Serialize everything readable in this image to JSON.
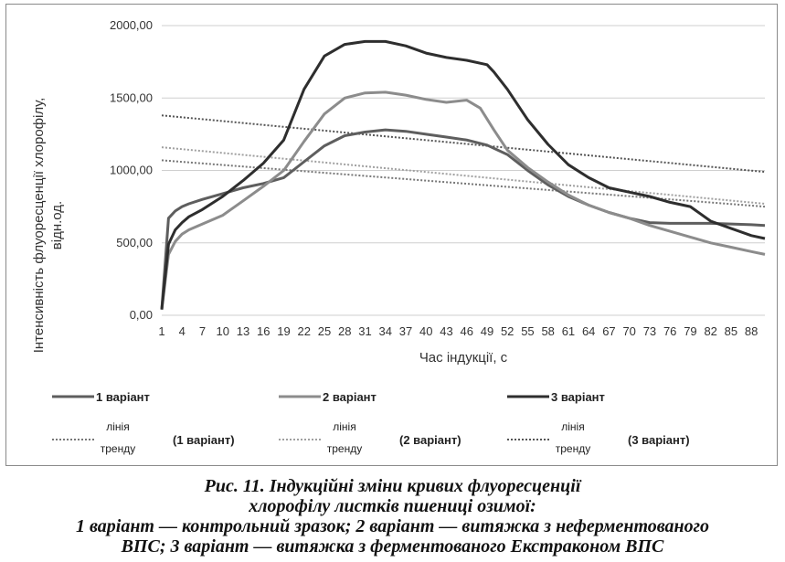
{
  "chart_data": {
    "type": "line",
    "ylabel": "Інтенсивність флуоресценції хлорофілу, відн.од.",
    "xlabel": "Час індукції, с",
    "ylim": [
      0,
      2000
    ],
    "y_ticks": [
      "0,00",
      "500,00",
      "1000,00",
      "1500,00",
      "2000,00"
    ],
    "x_ticks": [
      "1",
      "4",
      "7",
      "10",
      "13",
      "16",
      "19",
      "22",
      "25",
      "28",
      "31",
      "34",
      "37",
      "40",
      "43",
      "46",
      "49",
      "52",
      "55",
      "58",
      "61",
      "64",
      "67",
      "70",
      "73",
      "76",
      "79",
      "82",
      "85",
      "88"
    ],
    "grid": "horizontal",
    "series": [
      {
        "name": "1 варіант",
        "color": "#5e5e5e",
        "x": [
          1,
          2,
          3,
          4,
          5,
          7,
          10,
          13,
          16,
          19,
          22,
          25,
          28,
          31,
          34,
          37,
          40,
          43,
          46,
          49,
          52,
          55,
          58,
          61,
          64,
          67,
          70,
          73,
          76,
          79,
          82,
          85,
          88,
          90
        ],
        "y": [
          40,
          670,
          720,
          750,
          770,
          800,
          840,
          880,
          910,
          950,
          1060,
          1170,
          1240,
          1265,
          1280,
          1270,
          1250,
          1230,
          1210,
          1175,
          1110,
          1000,
          900,
          820,
          760,
          710,
          670,
          640,
          635,
          635,
          635,
          630,
          625,
          620
        ]
      },
      {
        "name": "2 варіант",
        "color": "#8c8c8c",
        "x": [
          1,
          2,
          3,
          4,
          5,
          7,
          10,
          13,
          16,
          19,
          22,
          25,
          28,
          31,
          34,
          37,
          40,
          43,
          46,
          48,
          50,
          52,
          55,
          58,
          61,
          64,
          67,
          70,
          73,
          76,
          79,
          82,
          85,
          88,
          90
        ],
        "y": [
          40,
          420,
          510,
          560,
          590,
          630,
          690,
          790,
          890,
          1000,
          1200,
          1390,
          1500,
          1535,
          1540,
          1520,
          1490,
          1470,
          1485,
          1430,
          1280,
          1140,
          1020,
          920,
          830,
          760,
          710,
          670,
          620,
          580,
          540,
          500,
          470,
          440,
          420
        ]
      },
      {
        "name": "3 варіант",
        "color": "#2e2e2e",
        "x": [
          1,
          2,
          3,
          4,
          5,
          7,
          10,
          13,
          16,
          19,
          22,
          25,
          28,
          31,
          34,
          37,
          40,
          43,
          46,
          49,
          50,
          52,
          55,
          58,
          61,
          64,
          67,
          70,
          73,
          76,
          79,
          82,
          85,
          88,
          90
        ],
        "y": [
          40,
          490,
          590,
          640,
          680,
          730,
          820,
          930,
          1050,
          1210,
          1560,
          1790,
          1870,
          1890,
          1890,
          1860,
          1810,
          1780,
          1760,
          1730,
          1680,
          1560,
          1350,
          1180,
          1040,
          950,
          880,
          850,
          820,
          780,
          750,
          650,
          600,
          550,
          530
        ]
      }
    ],
    "trendlines": [
      {
        "series": "1 варіант",
        "start": 1070,
        "end": 750,
        "color": "#777777"
      },
      {
        "series": "2 варіант",
        "start": 1160,
        "end": 770,
        "color": "#a0a0a0"
      },
      {
        "series": "3 варіант",
        "start": 1380,
        "end": 990,
        "color": "#555555"
      }
    ],
    "legend": {
      "position": "bottom",
      "trend_label_line1": "лінія",
      "trend_label_line2": "тренду",
      "trend_names": [
        "(1 варіант)",
        "(2 варіант)",
        "(3 варіант)"
      ]
    }
  },
  "caption": {
    "line1": "Рис. 11. Індукційні зміни кривих флуоресценції",
    "line2": "хлорофілу листків пшениці озимої:",
    "line3": "1 варіант — контрольний зразок; 2 варіант — витяжка з неферментованого",
    "line4": "ВПС; 3 варіант — витяжка з ферментованого Екстраконом ВПС"
  }
}
